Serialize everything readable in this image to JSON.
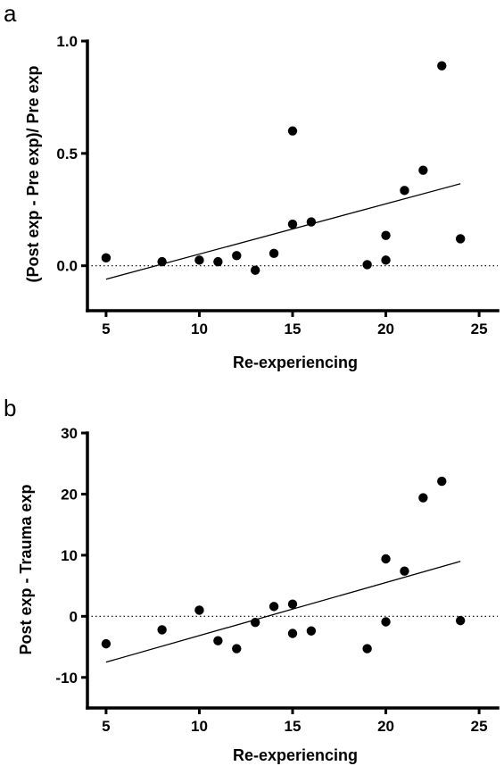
{
  "chart_data": [
    {
      "panel": "a",
      "type": "scatter",
      "xlabel": "Re-experiencing",
      "ylabel": "(Post exp - Pre exp)/ Pre exp",
      "xlim": [
        4,
        26
      ],
      "ylim": [
        -0.2,
        1.0
      ],
      "xticks": [
        "5",
        "10",
        "15",
        "20",
        "25"
      ],
      "yticks": [
        "0.0",
        "0.5",
        "1.0"
      ],
      "reference_line": {
        "y": 0,
        "style": "dotted"
      },
      "regression_line": {
        "x": [
          5,
          24
        ],
        "y": [
          -0.06,
          0.365
        ]
      },
      "series": [
        {
          "x": [
            5,
            8,
            10,
            11,
            12,
            13,
            14,
            15,
            15,
            16,
            19,
            20,
            20,
            21,
            22,
            23,
            24
          ],
          "y": [
            0.035,
            0.018,
            0.025,
            0.018,
            0.045,
            -0.02,
            0.055,
            0.6,
            0.185,
            0.195,
            0.005,
            0.135,
            0.025,
            0.335,
            0.425,
            0.89,
            0.12
          ]
        }
      ]
    },
    {
      "panel": "b",
      "type": "scatter",
      "xlabel": "Re-experiencing",
      "ylabel": "Post exp - Trauma exp",
      "xlim": [
        4,
        26
      ],
      "ylim": [
        -15,
        30
      ],
      "xticks": [
        "5",
        "10",
        "15",
        "20",
        "25"
      ],
      "yticks": [
        "-10",
        "0",
        "10",
        "20",
        "30"
      ],
      "reference_line": {
        "y": 0,
        "style": "dotted"
      },
      "regression_line": {
        "x": [
          5,
          24
        ],
        "y": [
          -7.5,
          9
        ]
      },
      "series": [
        {
          "x": [
            5,
            8,
            10,
            11,
            12,
            13,
            14,
            15,
            15,
            16,
            19,
            20,
            20,
            21,
            22,
            23,
            24
          ],
          "y": [
            -4.5,
            -2.2,
            1.0,
            -4.0,
            -5.3,
            -1.0,
            1.6,
            2.0,
            -2.8,
            -2.4,
            -5.3,
            9.4,
            -0.9,
            7.4,
            19.4,
            22.1,
            -0.7
          ]
        }
      ]
    }
  ]
}
